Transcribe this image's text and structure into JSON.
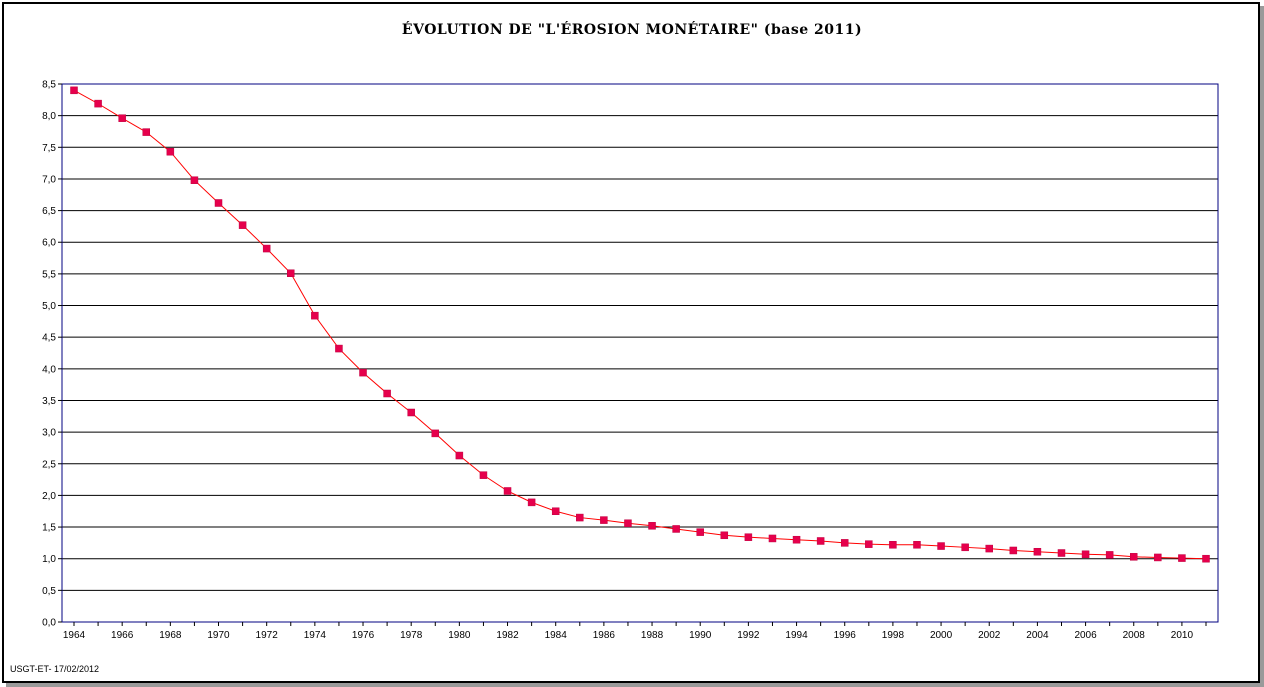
{
  "chart_data": {
    "type": "line",
    "title": "ÉVOLUTION  DE  \"L'ÉROSION  MONÉTAIRE\" (base 2011)",
    "xlabel": "",
    "ylabel": "",
    "ylim": [
      0,
      8.5
    ],
    "ystep": 0.5,
    "xlim": [
      1964,
      2011
    ],
    "grid": true,
    "legend": "none",
    "x": [
      1964,
      1965,
      1966,
      1967,
      1968,
      1969,
      1970,
      1971,
      1972,
      1973,
      1974,
      1975,
      1976,
      1977,
      1978,
      1979,
      1980,
      1981,
      1982,
      1983,
      1984,
      1985,
      1986,
      1987,
      1988,
      1989,
      1990,
      1991,
      1992,
      1993,
      1994,
      1995,
      1996,
      1997,
      1998,
      1999,
      2000,
      2001,
      2002,
      2003,
      2004,
      2005,
      2006,
      2007,
      2008,
      2009,
      2010,
      2011
    ],
    "x_ticks": [
      1964,
      1966,
      1968,
      1970,
      1972,
      1974,
      1976,
      1978,
      1980,
      1982,
      1984,
      1986,
      1988,
      1990,
      1992,
      1994,
      1996,
      1998,
      2000,
      2002,
      2004,
      2006,
      2008,
      2010
    ],
    "y_ticks": [
      "0,0",
      "0,5",
      "1,0",
      "1,5",
      "2,0",
      "2,5",
      "3,0",
      "3,5",
      "4,0",
      "4,5",
      "5,0",
      "5,5",
      "6,0",
      "6,5",
      "7,0",
      "7,5",
      "8,0",
      "8,5"
    ],
    "series": [
      {
        "color": "#ff0000",
        "marker_color": "#e6004c",
        "values": [
          8.4,
          8.19,
          7.96,
          7.74,
          7.43,
          6.98,
          6.62,
          6.27,
          5.9,
          5.51,
          4.84,
          4.32,
          3.94,
          3.61,
          3.31,
          2.98,
          2.63,
          2.32,
          2.07,
          1.89,
          1.75,
          1.65,
          1.61,
          1.56,
          1.52,
          1.47,
          1.42,
          1.37,
          1.34,
          1.32,
          1.3,
          1.28,
          1.25,
          1.23,
          1.22,
          1.22,
          1.2,
          1.18,
          1.16,
          1.13,
          1.11,
          1.09,
          1.07,
          1.06,
          1.03,
          1.02,
          1.01,
          1.0
        ]
      }
    ],
    "colors": {
      "frame": "#000080",
      "grid": "#000000",
      "line": "#ff0000",
      "marker": "#e6004c"
    }
  },
  "footer": "USGT-ET- 17/02/2012"
}
